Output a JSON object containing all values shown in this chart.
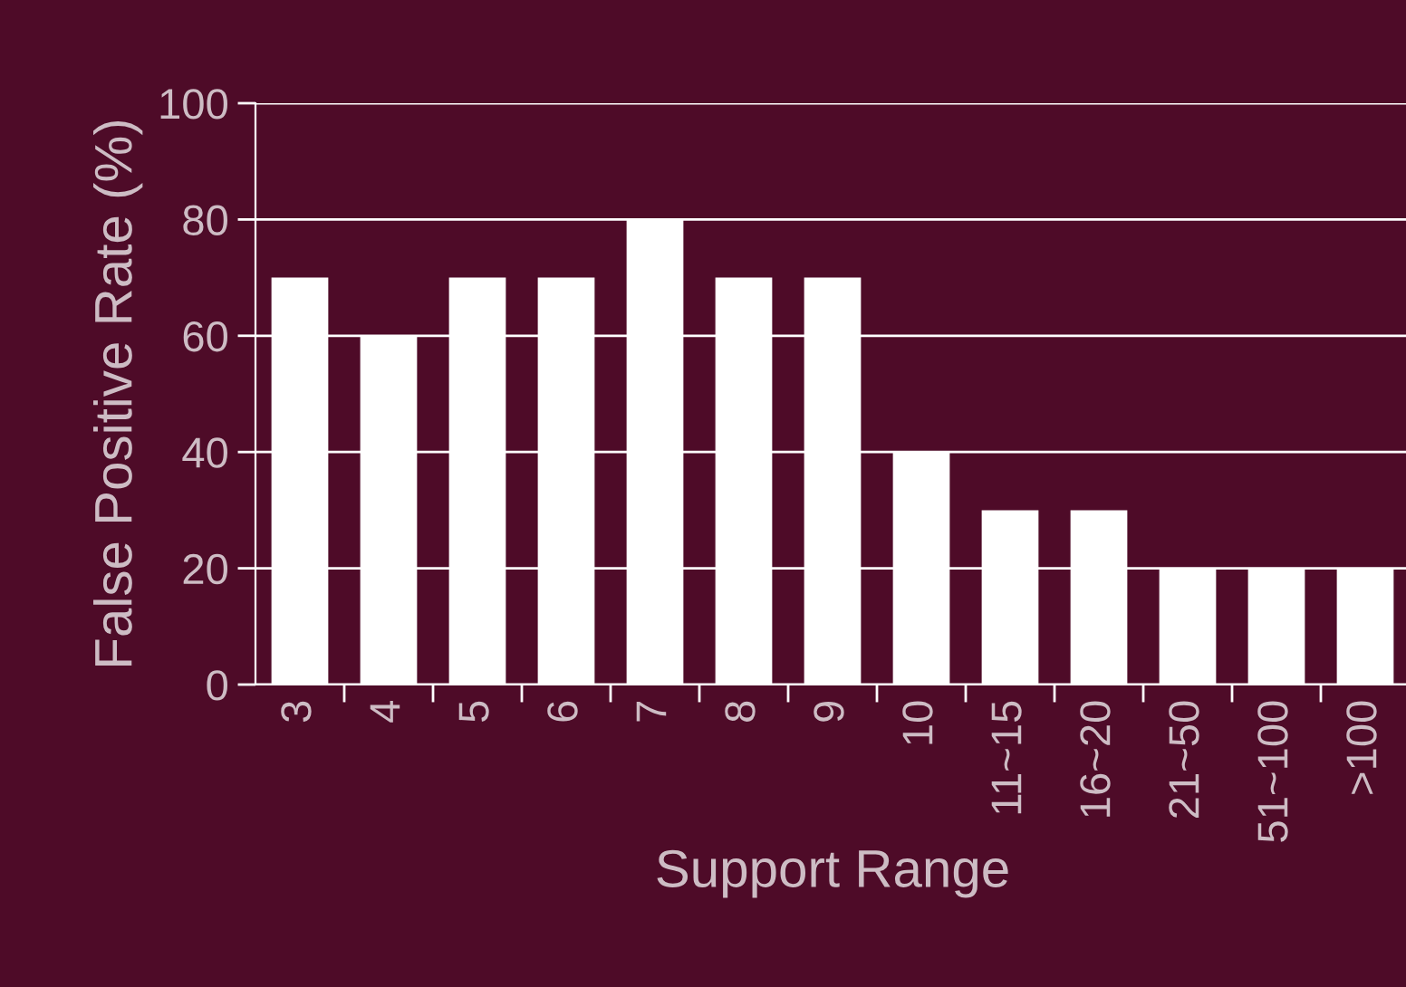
{
  "chart_data": {
    "type": "bar",
    "xlabel": "Support Range",
    "ylabel": "False Positive Rate (%)",
    "categories": [
      "3",
      "4",
      "5",
      "6",
      "7",
      "8",
      "9",
      "10",
      "11~15",
      "16~20",
      "21~50",
      "51~100",
      ">100"
    ],
    "values": [
      70,
      60,
      70,
      70,
      80,
      70,
      70,
      40,
      30,
      30,
      20,
      20,
      20
    ],
    "color": "#ffffff",
    "ylim": [
      0,
      100
    ],
    "yticks": [
      0,
      20,
      40,
      60,
      80,
      100
    ],
    "grid": "y"
  }
}
